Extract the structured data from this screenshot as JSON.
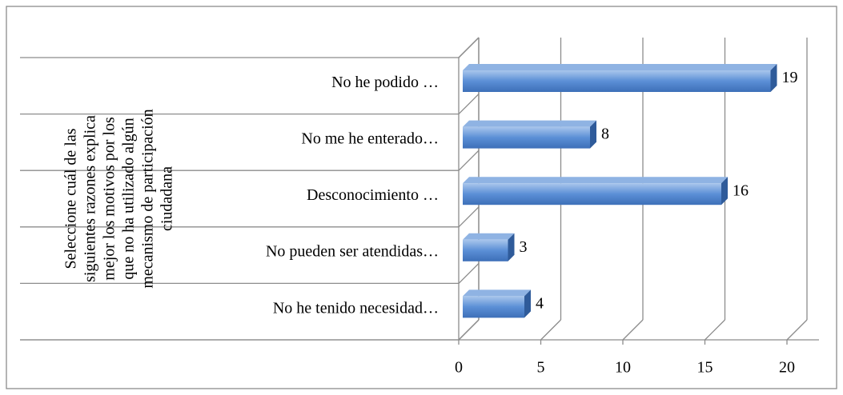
{
  "chart_data": {
    "type": "bar3d",
    "orientation": "horizontal",
    "y_axis_label": [
      "Seleccione cuál de las",
      "siguientes razones explica",
      "mejor los motivos por los",
      "que no ha utilizado algún",
      "mecanismo de participación",
      "ciudadana"
    ],
    "categories": [
      "No he podido …",
      "No me he enterado…",
      "Desconocimiento …",
      "No pueden ser atendidas…",
      "No he tenido necesidad…"
    ],
    "values": [
      19,
      8,
      16,
      3,
      4
    ],
    "color": "#4f81bd",
    "xlim": [
      0,
      20
    ],
    "xticks": [
      0,
      5,
      10,
      15,
      20
    ],
    "grid": true
  }
}
